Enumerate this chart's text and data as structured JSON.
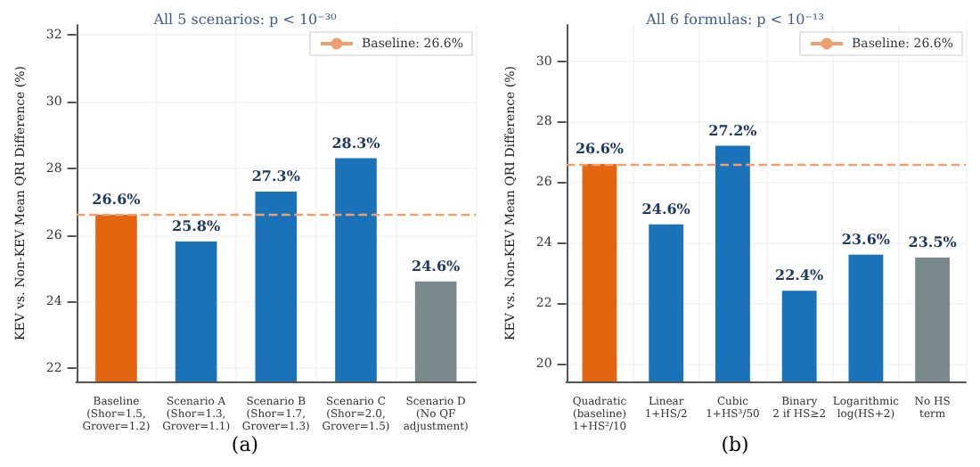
{
  "chart_data": [
    {
      "type": "bar",
      "title": "All 5 scenarios: p < 10⁻³⁰",
      "ylabel": "KEV vs. Non-KEV Mean QRI Difference (%)",
      "categories": [
        "Baseline\n(Shor=1.5,\nGrover=1.2)",
        "Scenario A\n(Shor=1.3,\nGrover=1.1)",
        "Scenario B\n(Shor=1.7,\nGrover=1.3)",
        "Scenario C\n(Shor=2.0,\nGrover=1.5)",
        "Scenario D\n(No QF\nadjustment)"
      ],
      "values": [
        26.6,
        25.8,
        27.3,
        28.3,
        24.6
      ],
      "colors": [
        "#e3650f",
        "#1a72b8",
        "#1a72b8",
        "#1a72b8",
        "#7a8a8c"
      ],
      "value_labels": [
        "26.6%",
        "25.8%",
        "27.3%",
        "28.3%",
        "24.6%"
      ],
      "ylim": [
        21.6,
        32.3
      ],
      "yticks": [
        22,
        24,
        26,
        28,
        30,
        32
      ],
      "ref_lines": [
        {
          "axis": "y",
          "value": 26.6,
          "label": "Baseline: 26.6%",
          "color": "#f0a070",
          "line_style": "dashed"
        }
      ],
      "annotations": [
        "(a)"
      ],
      "grid": true,
      "legend": "top right"
    },
    {
      "type": "bar",
      "title": "All 6 formulas: p < 10⁻¹³",
      "ylabel": "KEV vs. Non-KEV Mean QRI Difference (%)",
      "categories": [
        "Quadratic\n(baseline)\n1+HS²/10",
        "Linear\n1+HS/2",
        "Cubic\n1+HS³/50",
        "Binary\n2 if HS≥2",
        "Logarithmic\nlog(HS+2)",
        "No HS\nterm"
      ],
      "values": [
        26.6,
        24.6,
        27.2,
        22.4,
        23.6,
        23.5
      ],
      "colors": [
        "#e3650f",
        "#1a72b8",
        "#1a72b8",
        "#1a72b8",
        "#1a72b8",
        "#7a8a8c"
      ],
      "value_labels": [
        "26.6%",
        "24.6%",
        "27.2%",
        "22.4%",
        "23.6%",
        "23.5%"
      ],
      "ylim": [
        19.4,
        31.2
      ],
      "yticks": [
        20,
        22,
        24,
        26,
        28,
        30
      ],
      "ref_lines": [
        {
          "axis": "y",
          "value": 26.6,
          "label": "Baseline: 26.6%",
          "color": "#f0a070",
          "line_style": "dashed"
        }
      ],
      "annotations": [
        "(b)"
      ],
      "grid": true,
      "legend": "top right"
    }
  ]
}
